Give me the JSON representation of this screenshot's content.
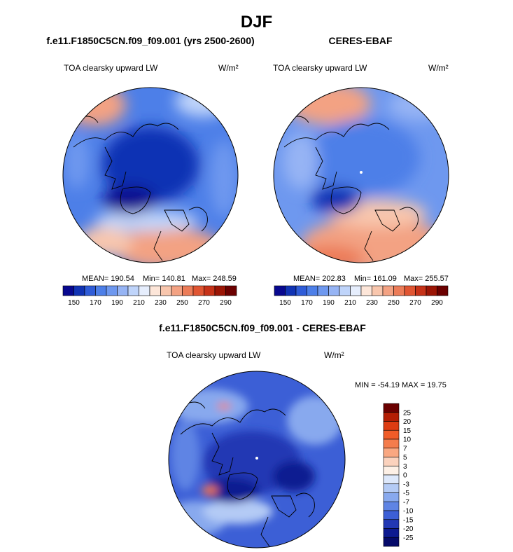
{
  "figure": {
    "title": "DJF",
    "left_panel_title": "f.e11.F1850C5CN.f09_f09.001 (yrs 2500-2600)",
    "right_panel_title": "CERES-EBAF",
    "diff_panel_title": "f.e11.F1850C5CN.f09_f09.001 - CERES-EBAF"
  },
  "chart_data": [
    {
      "type": "heatmap",
      "projection": "north polar stereographic",
      "variable_label": "TOA clearsky upward LW",
      "units": "W/m²",
      "stats": {
        "mean_label": "MEAN= 190.54",
        "min_label": "Min= 140.81",
        "max_label": "Max= 248.59",
        "mean": 190.54,
        "min": 140.81,
        "max": 248.59
      },
      "colorbar": {
        "orientation": "horizontal",
        "tick_labels": [
          "150",
          "170",
          "190",
          "210",
          "230",
          "250",
          "270",
          "290"
        ]
      }
    },
    {
      "type": "heatmap",
      "projection": "north polar stereographic",
      "variable_label": "TOA clearsky upward LW",
      "units": "W/m²",
      "stats": {
        "mean_label": "MEAN= 202.83",
        "min_label": "Min= 161.09",
        "max_label": "Max= 255.57",
        "mean": 202.83,
        "min": 161.09,
        "max": 255.57
      },
      "colorbar": {
        "orientation": "horizontal",
        "tick_labels": [
          "150",
          "170",
          "190",
          "210",
          "230",
          "250",
          "270",
          "290"
        ]
      }
    },
    {
      "type": "heatmap",
      "projection": "north polar stereographic",
      "variable_label": "TOA clearsky upward LW",
      "units": "W/m²",
      "stats": {
        "label": "MIN = -54.19 MAX =  19.75",
        "min": -54.19,
        "max": 19.75
      },
      "colorbar": {
        "orientation": "vertical",
        "tick_labels": [
          "25",
          "20",
          "15",
          "10",
          "7",
          "5",
          "3",
          "0",
          "-3",
          "-5",
          "-7",
          "-10",
          "-15",
          "-20",
          "-25"
        ]
      }
    }
  ],
  "colors": {
    "abs_scale": [
      "#08088f",
      "#1133b4",
      "#2f5cd8",
      "#4d7fe8",
      "#6e98ef",
      "#96b4f4",
      "#bfd4fa",
      "#e6eefd",
      "#fde6d9",
      "#f8c6ad",
      "#f3a283",
      "#ec7c58",
      "#e05532",
      "#c63218",
      "#9b1505",
      "#6b0000"
    ],
    "diff_scale": [
      "#6b0000",
      "#b31e04",
      "#dd3c12",
      "#f05c28",
      "#f47c4c",
      "#f9a781",
      "#fbd2bd",
      "#fdf0e6",
      "#dde8fb",
      "#b4cbf5",
      "#88a9ee",
      "#5f84e4",
      "#3c5fd6",
      "#2238b4",
      "#0d1a91",
      "#050a6a"
    ]
  }
}
